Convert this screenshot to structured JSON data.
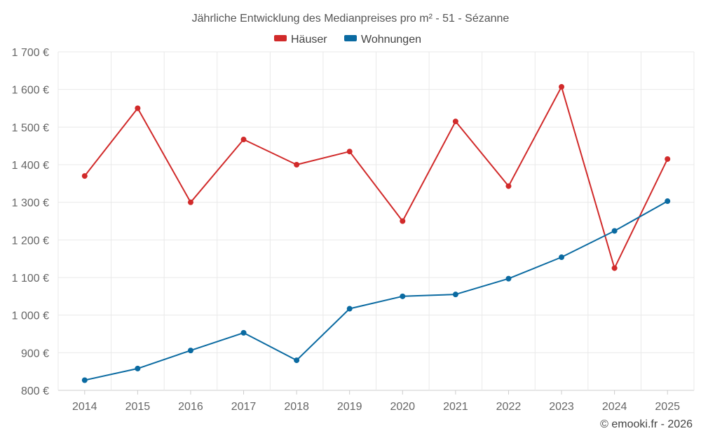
{
  "chart_data": {
    "type": "line",
    "title": "Jährliche Entwicklung des Medianpreises pro m² - 51 - Sézanne",
    "categories": [
      "2014",
      "2015",
      "2016",
      "2017",
      "2018",
      "2019",
      "2020",
      "2021",
      "2022",
      "2023",
      "2024",
      "2025"
    ],
    "series": [
      {
        "name": "Häuser",
        "color": "#d12a2a",
        "values": [
          1370,
          1550,
          1300,
          1467,
          1400,
          1435,
          1250,
          1515,
          1343,
          1607,
          1125,
          1415
        ]
      },
      {
        "name": "Wohnungen",
        "color": "#0a6aa1",
        "values": [
          827,
          858,
          906,
          953,
          880,
          1017,
          1050,
          1055,
          1097,
          1154,
          1224,
          1303
        ]
      }
    ],
    "ylim": [
      800,
      1700
    ],
    "yticks": [
      800,
      900,
      1000,
      1100,
      1200,
      1300,
      1400,
      1500,
      1600,
      1700
    ],
    "ytick_labels": [
      "800 €",
      "900 €",
      "1 000 €",
      "1 100 €",
      "1 200 €",
      "1 300 €",
      "1 400 €",
      "1 500 €",
      "1 600 €",
      "1 700 €"
    ],
    "xlabel": "",
    "ylabel": "",
    "grid": true,
    "legend": "top-center"
  },
  "credit": "© emooki.fr - 2026"
}
